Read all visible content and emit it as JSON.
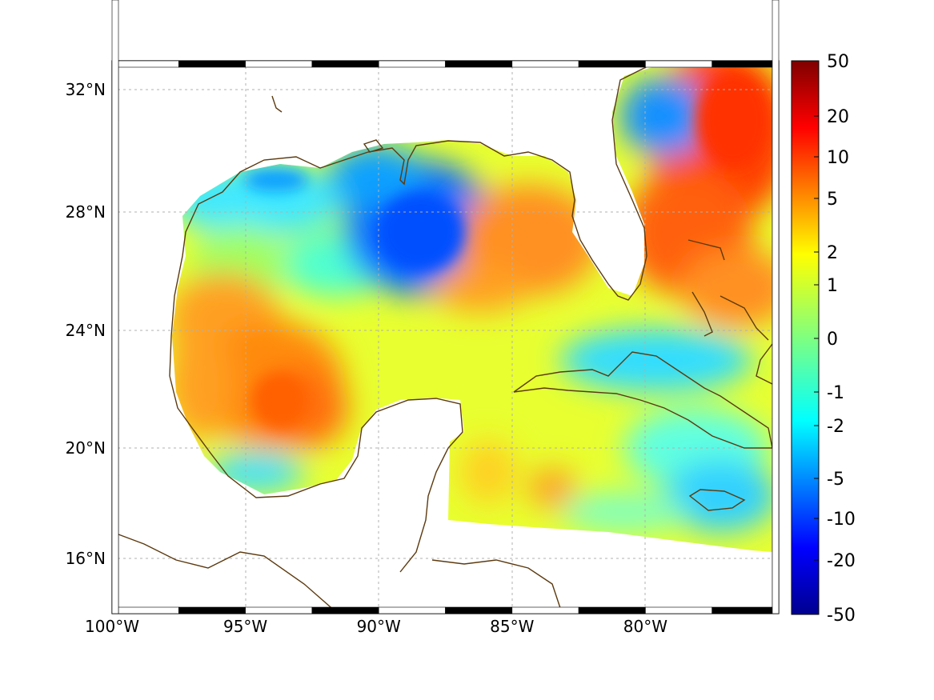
{
  "map": {
    "lon_range": [
      -100,
      -75
    ],
    "lat_range": [
      14.3,
      33
    ],
    "lon_ticks": [
      {
        "value": -100,
        "label": "100°W"
      },
      {
        "value": -95,
        "label": "95°W"
      },
      {
        "value": -90,
        "label": "90°W"
      },
      {
        "value": -85,
        "label": "85°W"
      },
      {
        "value": -80,
        "label": "80°W"
      }
    ],
    "lat_ticks": [
      {
        "value": 32,
        "label": "32°N"
      },
      {
        "value": 28,
        "label": "28°N"
      },
      {
        "value": 24,
        "label": "24°N"
      },
      {
        "value": 20,
        "label": "20°N"
      },
      {
        "value": 16,
        "label": "16°N"
      }
    ],
    "gridlines": true,
    "projection_frame": "alternating black/white",
    "coastline_color": "#5c3a0f"
  },
  "colorbar": {
    "colormap": "jet",
    "tick_labels": [
      "50",
      "20",
      "10",
      "5",
      "2",
      "1",
      "0",
      "-1",
      "-2",
      "-5",
      "-10",
      "-20",
      "-50"
    ]
  },
  "colors": {
    "dark_red": "#7f0000",
    "red": "#ff2000",
    "orange": "#ff8c00",
    "yellow": "#ffff00",
    "cyan": "#00ffff",
    "blue": "#0064ff",
    "dark_blue": "#00008f",
    "coast": "#5c3a0f"
  }
}
